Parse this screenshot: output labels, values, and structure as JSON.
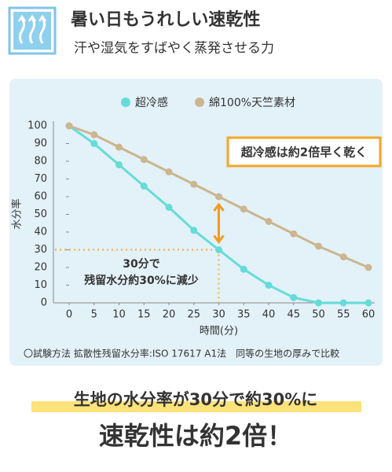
{
  "header": {
    "title": "暑い日もうれしい速乾性",
    "subtitle": "汗や湿気をすばやく蒸発させる力"
  },
  "chart_data": {
    "type": "line",
    "x": [
      0,
      5,
      10,
      15,
      20,
      25,
      30,
      35,
      40,
      45,
      50,
      55,
      60
    ],
    "series": [
      {
        "name": "超冷感",
        "color": "#66dcd8",
        "values": [
          100,
          90,
          78,
          66,
          54,
          41,
          30,
          19,
          10,
          3,
          0,
          0,
          0
        ]
      },
      {
        "name": "綿100%天竺素材",
        "color": "#cbb68f",
        "values": [
          100,
          95,
          88,
          81,
          74,
          67,
          60,
          53,
          46,
          39,
          32,
          26,
          20
        ]
      }
    ],
    "xlim": [
      0,
      60
    ],
    "ylim": [
      0,
      100
    ],
    "xticks": [
      0,
      5,
      10,
      15,
      20,
      25,
      30,
      35,
      40,
      45,
      50,
      55,
      60
    ],
    "yticks": [
      0,
      10,
      20,
      30,
      40,
      50,
      60,
      70,
      80,
      90,
      100
    ],
    "xlabel": "時間(分)",
    "ylabel": "水分率",
    "reference": {
      "x": 30,
      "y": 30
    },
    "callout": "超冷感は約2倍早く乾く",
    "annotation": [
      "30分で",
      "残留水分約30%に減少"
    ],
    "footnote": "〇試験方法 拡散性残留水分率:ISO 17617 A1法　同等の生地の厚みで比較"
  },
  "bottom": {
    "headline": "生地の水分率が30分で約30%に",
    "emphasis": "速乾性は約2倍！"
  }
}
